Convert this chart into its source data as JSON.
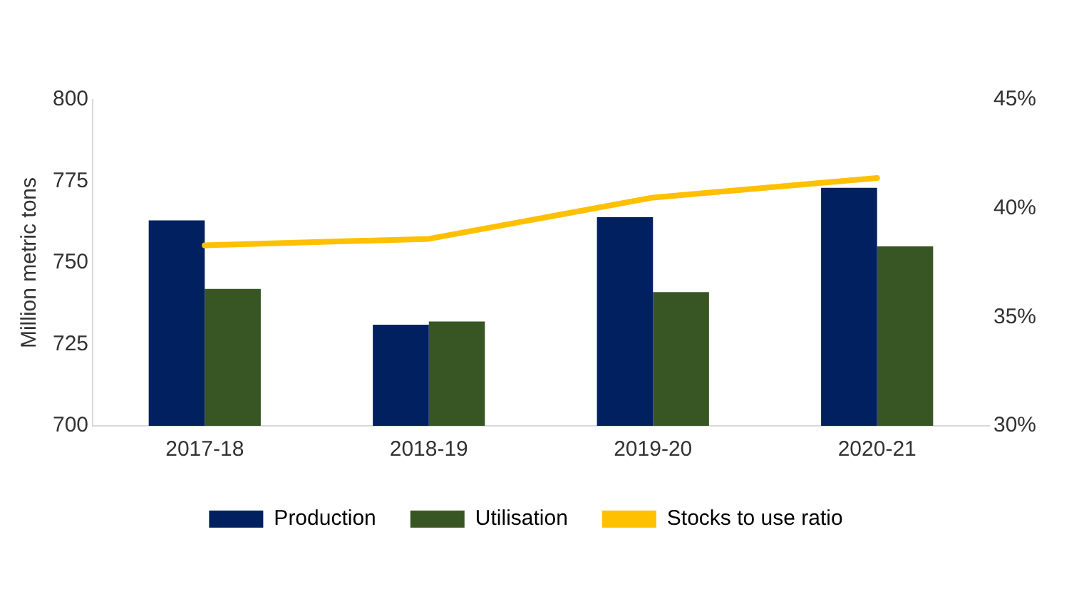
{
  "chart_data": {
    "type": "bar",
    "ylabel": "Million metric tons",
    "categories": [
      "2017-18",
      "2018-19",
      "2019-20",
      "2020-21"
    ],
    "series": [
      {
        "name": "Production",
        "color": "#002060",
        "values": [
          763,
          731,
          764,
          773
        ]
      },
      {
        "name": "Utilisation",
        "color": "#375623",
        "values": [
          742,
          732,
          741,
          755
        ]
      },
      {
        "name": "Stocks to use ratio",
        "type": "line",
        "axis": "y2",
        "color": "#ffc000",
        "values": [
          38.3,
          38.6,
          40.5,
          41.4
        ]
      }
    ],
    "ylim": [
      700,
      800
    ],
    "yticks": [
      700,
      725,
      750,
      775,
      800
    ],
    "y2lim": [
      30,
      45
    ],
    "y2ticks": [
      {
        "value": 30,
        "label": "30%"
      },
      {
        "value": 35,
        "label": "35%"
      },
      {
        "value": 40,
        "label": "40%"
      },
      {
        "value": 45,
        "label": "45%"
      }
    ],
    "grid": false,
    "legend": "bottom",
    "marker": "none"
  }
}
